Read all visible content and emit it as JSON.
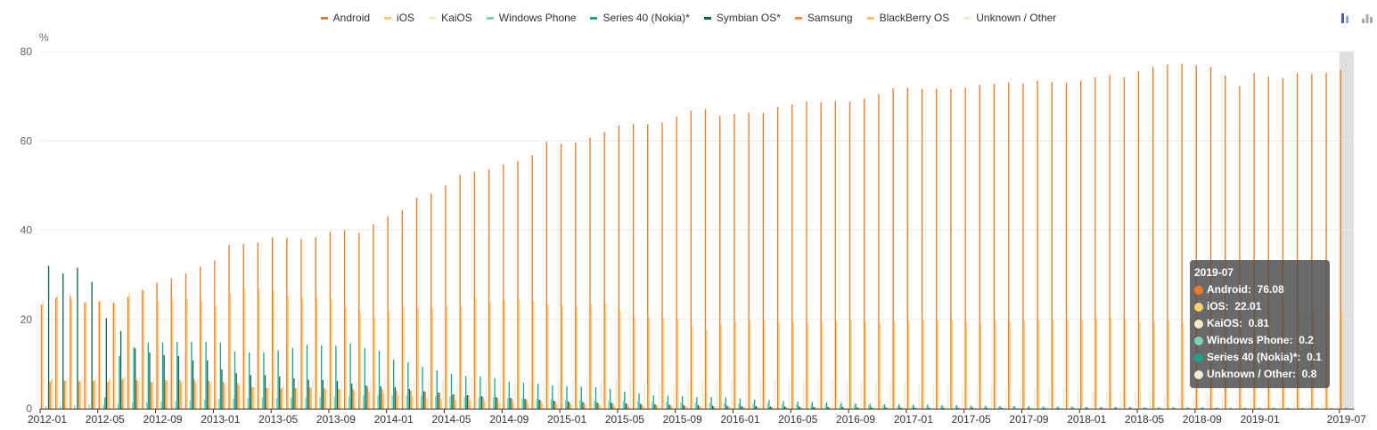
{
  "chart_data": {
    "type": "bar",
    "title": "",
    "xlabel": "",
    "ylabel": "%",
    "ylim": [
      0,
      80
    ],
    "yticks": [
      0,
      20,
      40,
      60,
      80
    ],
    "grid": true,
    "legend_position": "top-center",
    "x_tick_labels": [
      "2012-01",
      "2012-05",
      "2012-09",
      "2013-01",
      "2013-05",
      "2013-09",
      "2014-01",
      "2014-05",
      "2014-09",
      "2015-01",
      "2015-05",
      "2015-09",
      "2016-01",
      "2016-05",
      "2016-09",
      "2017-01",
      "2017-05",
      "2017-09",
      "2018-01",
      "2018-05",
      "2018-09",
      "2019-01",
      "2019-07"
    ],
    "x_start": "2012-01",
    "x_end": "2019-07",
    "series": [
      {
        "name": "Android",
        "color": "#f07a23",
        "values": [
          23.3,
          24.9,
          25.3,
          23.8,
          24.0,
          23.8,
          25.0,
          26.6,
          28.2,
          29.2,
          30.3,
          31.8,
          33.2,
          36.7,
          36.9,
          37.2,
          38.4,
          38.3,
          38.0,
          38.4,
          39.6,
          40.0,
          39.4,
          41.3,
          43.1,
          44.5,
          47.3,
          48.1,
          50.1,
          52.4,
          53.0,
          53.6,
          54.7,
          55.5,
          56.8,
          59.8,
          59.3,
          59.6,
          60.7,
          62.0,
          63.4,
          63.8,
          63.8,
          64.1,
          65.4,
          66.8,
          67.1,
          65.6,
          66.0,
          66.3,
          66.3,
          67.6,
          68.2,
          68.8,
          68.6,
          68.9,
          68.8,
          69.5,
          70.5,
          71.8,
          71.9,
          71.6,
          71.7,
          71.6,
          71.9,
          72.6,
          72.8,
          73.1,
          72.9,
          73.5,
          73.2,
          73.0,
          73.5,
          74.3,
          74.7,
          74.3,
          75.6,
          76.6,
          77.1,
          77.3,
          76.9,
          76.6,
          74.6,
          72.3,
          75.2,
          74.4,
          74.1,
          75.2,
          75.1,
          75.3,
          75.9,
          76.08
        ]
      },
      {
        "name": "iOS",
        "color": "#fdd26b",
        "values": [
          24.0,
          25.5,
          24.5,
          24.0,
          24.3,
          23.6,
          26.0,
          26.5,
          24.1,
          24.5,
          24.6,
          24.3,
          23.0,
          25.8,
          26.8,
          26.8,
          26.4,
          25.3,
          24.8,
          24.9,
          24.6,
          22.7,
          21.5,
          20.5,
          22.0,
          22.8,
          22.7,
          22.6,
          22.8,
          22.9,
          24.8,
          24.0,
          24.2,
          24.5,
          24.2,
          23.3,
          23.1,
          22.9,
          23.5,
          23.8,
          22.0,
          20.5,
          20.6,
          20.3,
          20.1,
          18.5,
          17.6,
          18.9,
          19.3,
          19.6,
          19.7,
          19.4,
          19.3,
          19.2,
          19.3,
          19.5,
          19.7,
          19.4,
          19.1,
          19.4,
          19.6,
          19.7,
          19.8,
          19.8,
          19.3,
          19.1,
          19.6,
          19.4,
          19.6,
          19.9,
          19.8,
          20.0,
          19.8,
          20.3,
          20.4,
          20.1,
          19.4,
          19.6,
          19.7,
          19.3,
          19.5,
          19.6,
          20.7,
          21.3,
          21.6,
          22.8,
          22.9,
          22.6,
          22.3,
          22.2,
          22.1,
          22.01
        ]
      },
      {
        "name": "KaiOS",
        "color": "#f6ecc4",
        "values": [
          0,
          0,
          0,
          0,
          0,
          0,
          0,
          0,
          0,
          0,
          0,
          0,
          0,
          0,
          0,
          0,
          0,
          0,
          0,
          0,
          0,
          0,
          0,
          0,
          0,
          0,
          0,
          0,
          0,
          0,
          0,
          0,
          0,
          0,
          0,
          0,
          0,
          0,
          0,
          0,
          0,
          0,
          0,
          0,
          0,
          0,
          0,
          0,
          0,
          0,
          0,
          0,
          0,
          0,
          0,
          0,
          0,
          0,
          0,
          0,
          0,
          0,
          0,
          0,
          0,
          0,
          0,
          0,
          0,
          0,
          0,
          0,
          0,
          0,
          0,
          0,
          0,
          0.05,
          0.1,
          0.15,
          0.2,
          0.3,
          0.4,
          0.5,
          0.6,
          0.7,
          0.75,
          0.8,
          0.8,
          0.8,
          0.8,
          0.81
        ]
      },
      {
        "name": "Windows Phone",
        "color": "#7fd1b9",
        "values": [
          0.6,
          0.7,
          0.8,
          0.9,
          1.0,
          1.1,
          1.3,
          1.5,
          1.6,
          1.7,
          1.9,
          2.0,
          2.1,
          2.3,
          2.4,
          2.5,
          2.4,
          2.5,
          2.5,
          2.6,
          2.7,
          2.8,
          2.9,
          3.0,
          3.1,
          3.0,
          2.9,
          2.8,
          2.7,
          2.6,
          2.5,
          2.5,
          2.4,
          2.3,
          2.2,
          2.1,
          2.0,
          1.9,
          1.8,
          1.7,
          1.7,
          1.6,
          1.5,
          1.5,
          1.4,
          1.3,
          1.3,
          1.2,
          1.2,
          1.1,
          1.1,
          1.0,
          1.0,
          0.9,
          0.9,
          0.8,
          0.8,
          0.7,
          0.7,
          0.6,
          0.6,
          0.5,
          0.5,
          0.5,
          0.4,
          0.4,
          0.4,
          0.4,
          0.3,
          0.3,
          0.3,
          0.3,
          0.3,
          0.3,
          0.3,
          0.3,
          0.2,
          0.2,
          0.2,
          0.2,
          0.2,
          0.2,
          0.2,
          0.2,
          0.2,
          0.2,
          0.2,
          0.2,
          0.2,
          0.2,
          0.2,
          0.2
        ]
      },
      {
        "name": "Series 40 (Nokia)*",
        "color": "#1aa38a",
        "values": [
          0,
          0,
          0,
          0,
          2.5,
          11.8,
          13.8,
          14.8,
          14.8,
          15.0,
          15.0,
          15.0,
          14.8,
          12.8,
          12.6,
          12.6,
          13.0,
          13.6,
          14.3,
          14.2,
          14.1,
          14.6,
          13.6,
          13.0,
          11.0,
          10.4,
          9.4,
          8.6,
          7.8,
          7.3,
          7.2,
          6.8,
          6.0,
          5.8,
          5.6,
          5.2,
          5.0,
          4.9,
          4.8,
          4.4,
          3.8,
          3.4,
          3.0,
          2.9,
          2.8,
          2.6,
          2.6,
          2.5,
          2.3,
          2.0,
          1.9,
          1.7,
          1.6,
          1.5,
          1.4,
          1.3,
          1.2,
          1.1,
          1.0,
          1.0,
          0.9,
          0.9,
          0.8,
          0.8,
          0.7,
          0.7,
          0.6,
          0.6,
          0.6,
          0.5,
          0.5,
          0.5,
          0.4,
          0.4,
          0.4,
          0.4,
          0.3,
          0.3,
          0.3,
          0.3,
          0.3,
          0.2,
          0.2,
          0.2,
          0.2,
          0.2,
          0.2,
          0.1,
          0.1,
          0.1,
          0.1,
          0.1
        ]
      },
      {
        "name": "Symbian OS*",
        "color": "#0b6651",
        "values": [
          32.0,
          30.3,
          31.6,
          28.4,
          20.3,
          17.4,
          13.5,
          12.6,
          12.0,
          11.8,
          10.8,
          10.8,
          8.8,
          8.0,
          7.5,
          7.5,
          7.2,
          6.8,
          6.5,
          6.4,
          6.2,
          5.6,
          5.2,
          5.0,
          4.8,
          4.4,
          3.9,
          3.6,
          3.2,
          3.0,
          2.8,
          2.6,
          2.4,
          2.2,
          2.0,
          1.8,
          1.6,
          1.5,
          1.4,
          1.3,
          1.2,
          1.1,
          1.0,
          0.9,
          0.8,
          0.8,
          0.7,
          0.7,
          0.6,
          0.6,
          0.5,
          0.5,
          0.5,
          0.4,
          0.4,
          0.4,
          0.3,
          0.3,
          0.3,
          0.3,
          0.2,
          0.2,
          0.2,
          0.2,
          0.2,
          0.2,
          0.2,
          0.1,
          0.1,
          0.1,
          0.1,
          0.1,
          0.1,
          0.1,
          0.1,
          0.1,
          0.1,
          0.1,
          0.1,
          0.1,
          0.1,
          0.1,
          0,
          0,
          0,
          0,
          0,
          0,
          0,
          0,
          0,
          0
        ]
      },
      {
        "name": "Samsung",
        "color": "#f28a36",
        "values": [
          6.0,
          6.2,
          6.1,
          6.2,
          6.0,
          6.5,
          6.4,
          6.0,
          6.4,
          6.4,
          6.5,
          6.2,
          6.0,
          5.8,
          4.8,
          4.6,
          4.5,
          4.6,
          4.8,
          4.6,
          4.4,
          4.4,
          4.8,
          4.4,
          4.2,
          4.0,
          3.8,
          3.6,
          3.2,
          3.0,
          2.6,
          2.4,
          2.2,
          2.0,
          1.8,
          1.6,
          1.4,
          1.3,
          1.2,
          1.1,
          1.0,
          0.9,
          0.8,
          0.7,
          0.6,
          0.6,
          0.5,
          0.5,
          0.4,
          0.4,
          0.4,
          0.3,
          0.3,
          0.3,
          0.3,
          0.2,
          0.2,
          0.2,
          0.2,
          0.2,
          0.2,
          0.1,
          0.1,
          0.1,
          0.1,
          0.1,
          0.1,
          0.1,
          0.1,
          0.1,
          0.1,
          0.1,
          0.1,
          0.1,
          0.1,
          0.1,
          0.1,
          0.1,
          0.1,
          0.1,
          0.1,
          0.1,
          0,
          0,
          0,
          0,
          0,
          0,
          0,
          0,
          0,
          0
        ]
      },
      {
        "name": "BlackBerry OS",
        "color": "#fbc45a",
        "values": [
          6.6,
          6.4,
          6.2,
          6.4,
          6.6,
          7.0,
          6.2,
          6.0,
          6.2,
          6.0,
          5.8,
          5.6,
          5.4,
          5.2,
          4.8,
          4.6,
          4.8,
          4.5,
          4.6,
          4.4,
          4.2,
          4.0,
          3.8,
          3.4,
          3.0,
          2.8,
          2.4,
          2.2,
          1.9,
          1.8,
          1.6,
          1.4,
          1.3,
          1.2,
          1.1,
          1.0,
          0.9,
          0.8,
          0.7,
          0.6,
          0.5,
          0.5,
          0.4,
          0.4,
          0.4,
          0.3,
          0.3,
          0.3,
          0.2,
          0.2,
          0.2,
          0.2,
          0.2,
          0.1,
          0.1,
          0.1,
          0.1,
          0.1,
          0.1,
          0.1,
          0.1,
          0.1,
          0.1,
          0.1,
          0.1,
          0.1,
          0.1,
          0.1,
          0.1,
          0.1,
          0.1,
          0.1,
          0.1,
          0.1,
          0.1,
          0.1,
          0,
          0,
          0,
          0,
          0,
          0,
          0,
          0,
          0,
          0,
          0,
          0,
          0,
          0,
          0,
          0
        ]
      },
      {
        "name": "Unknown / Other",
        "color": "#efecd2",
        "values": [
          7.2,
          7.0,
          7.0,
          7.6,
          7.4,
          7.4,
          7.2,
          7.0,
          7.2,
          6.8,
          6.6,
          6.4,
          6.6,
          6.8,
          6.6,
          6.4,
          6.2,
          6.6,
          6.8,
          6.8,
          6.4,
          6.2,
          6.6,
          6.8,
          6.6,
          6.4,
          6.2,
          6.6,
          6.8,
          6.8,
          6.4,
          6.6,
          6.8,
          6.6,
          6.6,
          6.2,
          6.4,
          6.6,
          6.4,
          6.2,
          6.0,
          6.0,
          5.8,
          5.6,
          5.8,
          6.0,
          6.2,
          6.4,
          6.8,
          6.6,
          6.4,
          6.6,
          6.6,
          6.4,
          6.6,
          6.4,
          6.2,
          6.0,
          6.0,
          5.8,
          5.6,
          5.4,
          5.4,
          5.2,
          5.0,
          5.0,
          4.8,
          4.6,
          4.6,
          4.4,
          4.4,
          4.2,
          4.0,
          4.0,
          3.8,
          3.6,
          3.4,
          3.2,
          3.0,
          2.8,
          2.6,
          2.6,
          2.4,
          2.2,
          2.0,
          1.8,
          1.6,
          1.4,
          1.2,
          1.0,
          0.9,
          0.8
        ]
      }
    ]
  },
  "toolbox": {
    "icons": [
      "bar-chart-icon",
      "stack-chart-icon"
    ],
    "active_color": "#4a5bb3",
    "inactive_color": "#999999"
  },
  "tooltip": {
    "title": "2019-07",
    "rows": [
      {
        "label": "Android",
        "value": "76.08",
        "color": "#f07a23"
      },
      {
        "label": "iOS",
        "value": "22.01",
        "color": "#fdd26b"
      },
      {
        "label": "KaiOS",
        "value": "0.81",
        "color": "#f6ecc4"
      },
      {
        "label": "Windows Phone",
        "value": "0.2",
        "color": "#7fd1b9"
      },
      {
        "label": "Series 40 (Nokia)*",
        "value": "0.1",
        "color": "#1aa38a"
      },
      {
        "label": "Unknown / Other",
        "value": "0.8",
        "color": "#efecd2"
      }
    ]
  }
}
